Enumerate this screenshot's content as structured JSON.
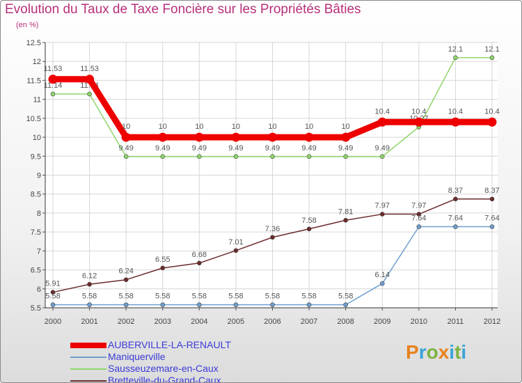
{
  "header": {
    "title": "Evolution du Taux de Taxe Foncière sur les Propriétés Bâties",
    "unit": "(en %)"
  },
  "brand": {
    "text": "Proxiti",
    "colors": [
      "#e8821e",
      "#3aa3d8",
      "#7cb342",
      "#e8821e",
      "#3aa3d8",
      "#7cb342",
      "#3aa3d8"
    ]
  },
  "chart_data": {
    "type": "line",
    "title": "Evolution du Taux de Taxe Foncière sur les Propriétés Bâties",
    "ylabel": "(en %)",
    "xlabel": "",
    "x": [
      "2000",
      "2001",
      "2002",
      "2003",
      "2004",
      "2005",
      "2006",
      "2007",
      "2008",
      "2009",
      "2010",
      "2011",
      "2012"
    ],
    "ylim": [
      5.5,
      12.5
    ],
    "yticks": [
      "5.5",
      "6",
      "6.5",
      "7",
      "7.5",
      "8",
      "8.5",
      "9",
      "9.5",
      "10",
      "10.5",
      "11",
      "11.5",
      "12",
      "12.5"
    ],
    "grid": true,
    "series": [
      {
        "name": "AUBERVILLE-LA-RENAULT",
        "color": "#ee0000",
        "values": [
          11.53,
          11.53,
          10,
          10,
          10,
          10,
          10,
          10,
          10,
          10.4,
          10.4,
          10.4,
          10.4
        ]
      },
      {
        "name": "Maniquerville",
        "color": "#6e9fcf",
        "values": [
          5.58,
          5.58,
          5.58,
          5.58,
          5.58,
          5.58,
          5.58,
          5.58,
          5.58,
          6.14,
          7.64,
          7.64,
          7.64
        ]
      },
      {
        "name": "Sausseuzemare-en-Caux",
        "color": "#8fd66a",
        "values": [
          11.14,
          11.14,
          9.49,
          9.49,
          9.49,
          9.49,
          9.49,
          9.49,
          9.49,
          9.49,
          10.27,
          12.1,
          12.1
        ]
      },
      {
        "name": "Bretteville-du-Grand-Caux",
        "color": "#6b2a2a",
        "values": [
          5.91,
          6.12,
          6.24,
          6.55,
          6.68,
          7.01,
          7.36,
          7.58,
          7.81,
          7.97,
          7.97,
          8.37,
          8.37
        ]
      }
    ]
  }
}
